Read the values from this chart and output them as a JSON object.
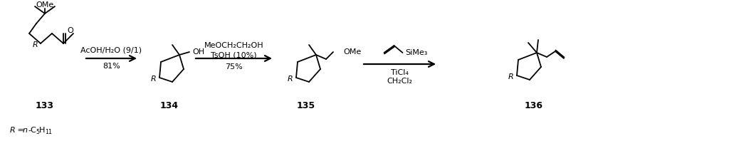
{
  "bg_color": "#ffffff",
  "fig_width": 10.24,
  "fig_height": 1.98,
  "dpi": 100,
  "c133_label": "133",
  "c134_label": "134",
  "c135_label": "135",
  "c136_label": "136",
  "arr1_above1": "AcOH/H",
  "arr1_above2": "O (9/1)",
  "arr1_below": "81%",
  "arr2_above1": "MeOCH",
  "arr2_above2": "CH",
  "arr2_above3": "OH",
  "arr2_mid": "TsOH (10%)",
  "arr2_below": "75%",
  "arr3_label_ticl4": "TiCl",
  "arr3_label_ch2cl2": "CH",
  "footnote_R": "R = ",
  "footnote_n": "n",
  "footnote_chain": "-C",
  "footnote_sub1": "5",
  "footnote_H": "H",
  "footnote_sub2": "11",
  "lw": 1.3,
  "fs": 8.0,
  "fs_sub": 5.8,
  "fs_num": 9.0
}
